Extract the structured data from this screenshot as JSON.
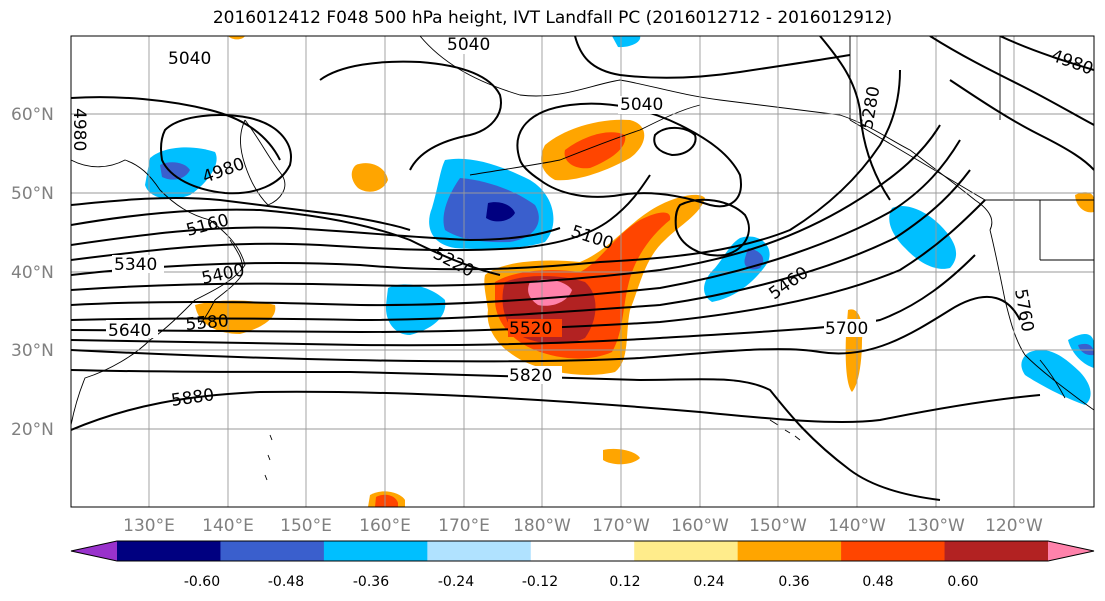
{
  "title": "2016012412 F048 500 hPa height, IVT Landfall PC (2016012712 - 2016012912)",
  "lat_labels": [
    "60°N",
    "50°N",
    "40°N",
    "30°N",
    "20°N"
  ],
  "lon_labels": [
    "130°E",
    "140°E",
    "150°E",
    "160°E",
    "170°E",
    "180°W",
    "170°W",
    "160°W",
    "150°W",
    "140°W",
    "130°W",
    "120°W"
  ],
  "contour_labels": [
    "5040",
    "5040",
    "5040",
    "4980",
    "4980",
    "4980",
    "5160",
    "5340",
    "5400",
    "5100",
    "5220",
    "5280",
    "5460",
    "5520",
    "5580",
    "5640",
    "5700",
    "5760",
    "5820",
    "5880"
  ],
  "colorbar": {
    "tick_labels": [
      "-0.60",
      "-0.48",
      "-0.36",
      "-0.24",
      "-0.12",
      "0.12",
      "0.24",
      "0.36",
      "0.48",
      "0.60"
    ],
    "colors": [
      "#9932CC",
      "#000080",
      "#3A5FCD",
      "#00BFFF",
      "#B0E2FF",
      "#FFFFFF",
      "#FFEC8B",
      "#FFA500",
      "#FF4500",
      "#B22222",
      "#FF82AB"
    ]
  },
  "fill_colors": {
    "light_blue": "#00BFFF",
    "mid_blue": "#3A5FCD",
    "navy": "#000080",
    "yellow": "#FFEC8B",
    "orange": "#FFA500",
    "red_orange": "#FF4500",
    "dark_red": "#B22222",
    "pink": "#FF82AB"
  }
}
